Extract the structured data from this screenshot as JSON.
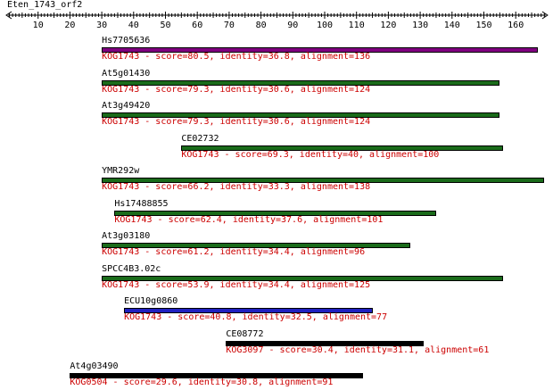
{
  "query": {
    "title": "Eten_1743_orf2",
    "axis": {
      "min": 0,
      "max": 170,
      "ticks": [
        10,
        20,
        30,
        40,
        50,
        60,
        70,
        80,
        90,
        100,
        110,
        120,
        130,
        140,
        150,
        160
      ]
    }
  },
  "hits": [
    {
      "name": "Hs7705636",
      "start": 30,
      "end": 167,
      "color": "#800080",
      "desc": "KOG1743 - score=80.5, identity=36.8, alignment=136"
    },
    {
      "name": "At5g01430",
      "start": 30,
      "end": 155,
      "color": "#1a6b1a",
      "desc": "KOG1743 - score=79.3, identity=30.6, alignment=124"
    },
    {
      "name": "At3g49420",
      "start": 30,
      "end": 155,
      "color": "#1a6b1a",
      "desc": "KOG1743 - score=79.3, identity=30.6, alignment=124"
    },
    {
      "name": "CE02732",
      "start": 55,
      "end": 156,
      "color": "#1a6b1a",
      "desc": "KOG1743 - score=69.3, identity=40, alignment=100"
    },
    {
      "name": "YMR292w",
      "start": 30,
      "end": 169,
      "color": "#1a6b1a",
      "desc": "KOG1743 - score=66.2, identity=33.3, alignment=138"
    },
    {
      "name": "Hs17488855",
      "start": 34,
      "end": 135,
      "color": "#1a6b1a",
      "desc": "KOG1743 - score=62.4, identity=37.6, alignment=101"
    },
    {
      "name": "At3g03180",
      "start": 30,
      "end": 127,
      "color": "#1a6b1a",
      "desc": "KOG1743 - score=61.2, identity=34.4, alignment=96"
    },
    {
      "name": "SPCC4B3.02c",
      "start": 30,
      "end": 156,
      "color": "#1a6b1a",
      "desc": "KOG1743 - score=53.9, identity=34.4, alignment=125"
    },
    {
      "name": "ECU10g0860",
      "start": 37,
      "end": 115,
      "color": "#2020c0",
      "desc": "KOG1743 - score=40.8, identity=32.5, alignment=77"
    },
    {
      "name": "CE08772",
      "start": 69,
      "end": 131,
      "color": "#000000",
      "desc": "KOG3097 - score=30.4, identity=31.1, alignment=61"
    },
    {
      "name": "At4g03490",
      "start": 20,
      "end": 112,
      "color": "#000000",
      "desc": "KOG0504 - score=29.6, identity=30.8, alignment=91"
    }
  ]
}
